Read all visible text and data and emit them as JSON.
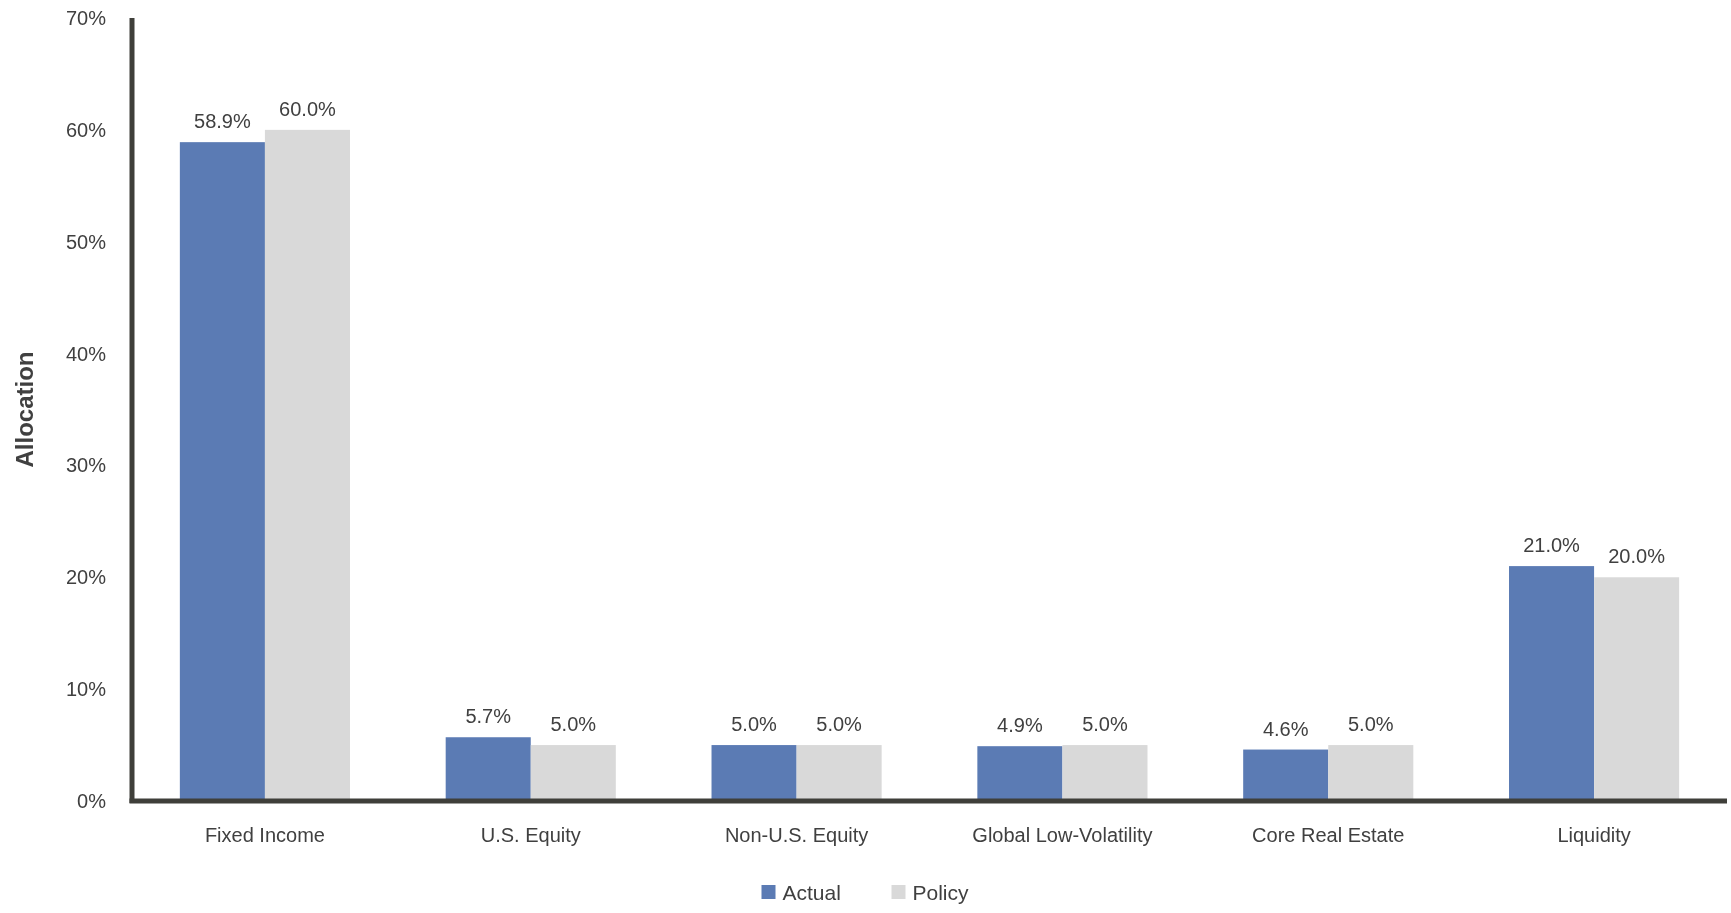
{
  "chart_data": {
    "type": "bar",
    "ylabel": "Allocation",
    "categories": [
      "Fixed Income",
      "U.S. Equity",
      "Non-U.S. Equity",
      "Global Low-Volatility",
      "Core Real Estate",
      "Liquidity"
    ],
    "series": [
      {
        "name": "Actual",
        "color": "#5b7bb4",
        "values": [
          58.9,
          5.7,
          5.0,
          4.9,
          4.6,
          21.0
        ],
        "value_labels": [
          "58.9%",
          "5.7%",
          "5.0%",
          "4.9%",
          "4.6%",
          "21.0%"
        ]
      },
      {
        "name": "Policy",
        "color": "#d9d9d9",
        "values": [
          60.0,
          5.0,
          5.0,
          5.0,
          5.0,
          20.0
        ],
        "value_labels": [
          "60.0%",
          "5.0%",
          "5.0%",
          "5.0%",
          "5.0%",
          "20.0%"
        ]
      }
    ],
    "ylim": [
      0,
      70
    ],
    "yticks": [
      {
        "value": 0,
        "label": "0%"
      },
      {
        "value": 10,
        "label": "10%"
      },
      {
        "value": 20,
        "label": "20%"
      },
      {
        "value": 30,
        "label": "30%"
      },
      {
        "value": 40,
        "label": "40%"
      },
      {
        "value": 50,
        "label": "50%"
      },
      {
        "value": 60,
        "label": "60%"
      },
      {
        "value": 70,
        "label": "70%"
      }
    ],
    "legend": "bottom"
  }
}
